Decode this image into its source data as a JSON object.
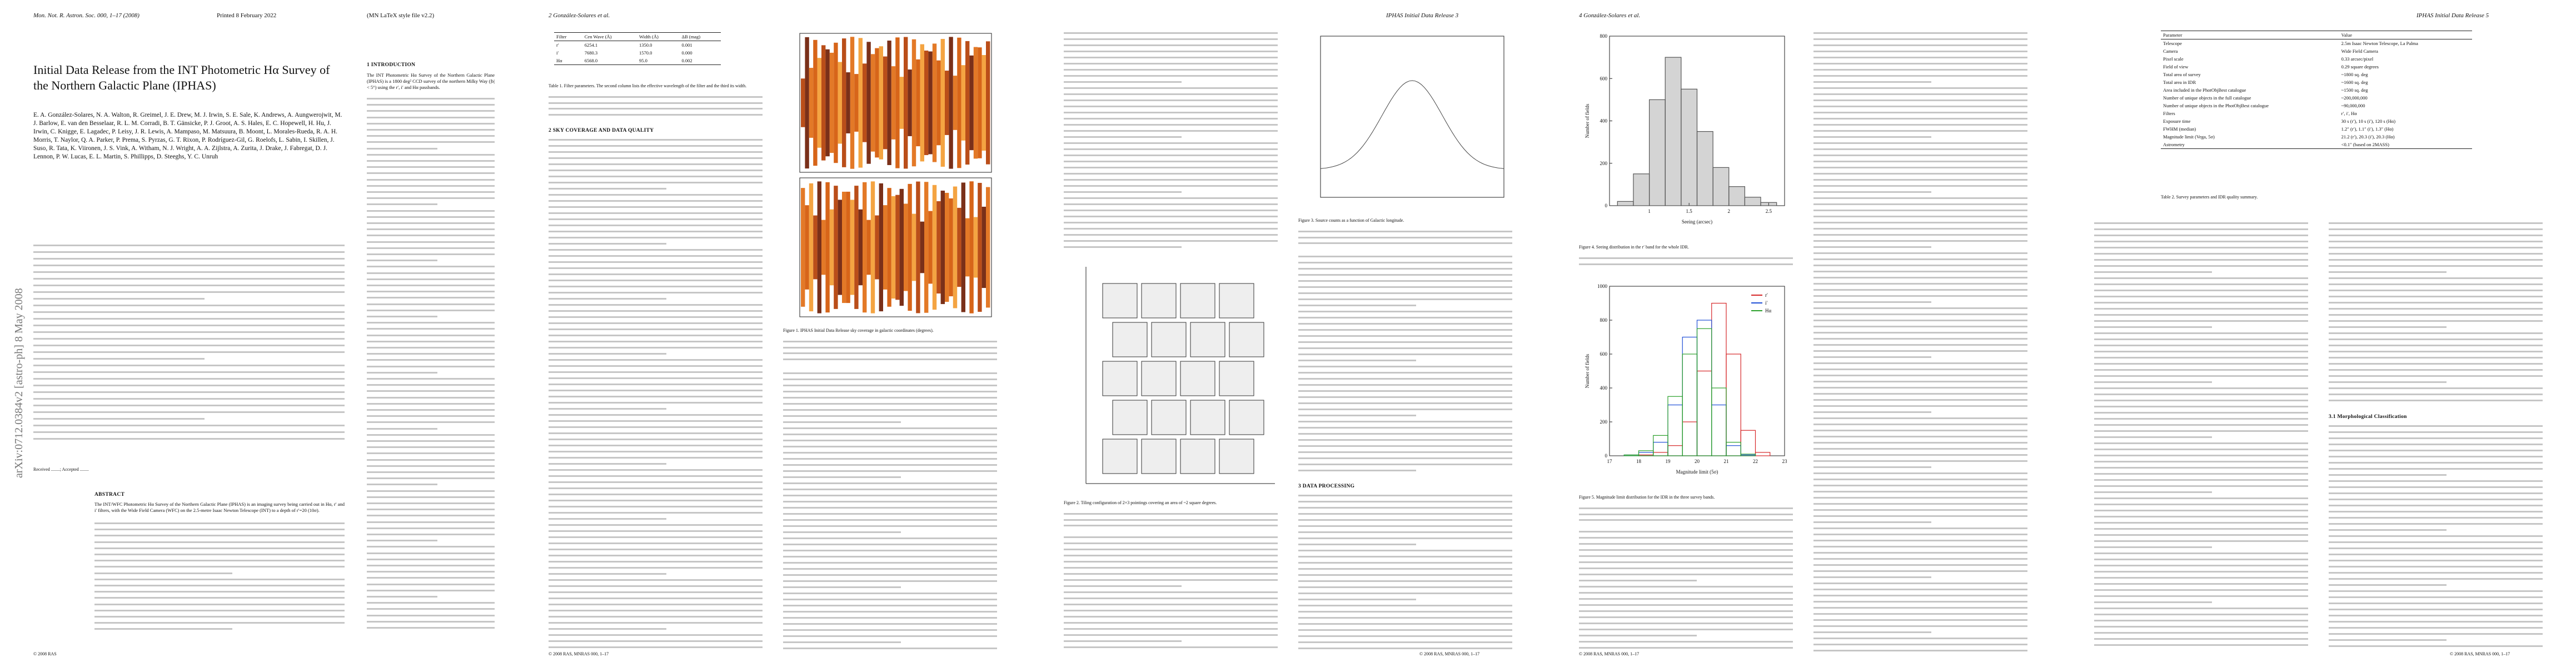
{
  "page1": {
    "header_left": "Mon. Not. R. Astron. Soc. 000, 1–17 (2008)",
    "header_mid": "Printed 8 February 2022",
    "header_right": "(MN LaTeX style file v2.2)",
    "title": "Initial Data Release from the INT Photometric Hα Survey of the Northern Galactic Plane (IPHAS)",
    "authors": "E. A. González-Solares, N. A. Walton, R. Greimel, J. E. Drew, M. J. Irwin, S. E. Sale, K. Andrews, A. Aungwerojwit, M. J. Barlow, E. van den Besselaar, R. L. M. Corradi, B. T. Gänsicke, P. J. Groot, A. S. Hales, E. C. Hopewell, H. Hu, J. Irwin, C. Knigge, E. Lagadec, P. Leisy, J. R. Lewis, A. Mampaso, M. Matsuura, B. Moont, L. Morales-Rueda, R. A. H. Morris, T. Naylor, Q. A. Parker, P. Prema, S. Pyrzas, G. T. Rixon, P. Rodríguez-Gil, G. Roelofs, L. Sabin, I. Skillen, J. Suso, R. Tata, K. Viironen, J. S. Vink, A. Witham, N. J. Wright, A. A. Zijlstra, A. Zurita, J. Drake, J. Fabregat, D. J. Lennon, P. W. Lucas, E. L. Martin, S. Phillipps, D. Steeghs, Y. C. Unruh",
    "arxiv_id": "arXiv:0712.0384v2  [astro-ph]  8 May 2008",
    "received": "Received ........; Accepted ........",
    "abstract_heading": "ABSTRACT",
    "abstract": "The INT/WFC Photometric Hα Survey of the Northern Galactic Plane (IPHAS) is an imaging survey being carried out in Hα, r′ and i′ filters, with the Wide Field Camera (WFC) on the 2.5-metre Isaac Newton Telescope (INT) to a depth of r′=20 (10σ).",
    "section_heading": "1 INTRODUCTION",
    "intro": "The INT Photometric Hα Survey of the Northern Galactic Plane (IPHAS) is a 1800 deg² CCD survey of the northern Milky Way (|b| < 5°) using the r′, i′ and Hα passbands.",
    "footer": "© 2008 RAS"
  },
  "page2": {
    "header_left": "2    González-Solares et al.",
    "table1": {
      "columns": [
        "Filter",
        "Cen Wave (Å)",
        "Width (Å)",
        "ΔB (mag)"
      ],
      "rows": [
        [
          "r′",
          "6254.1",
          "1350.0",
          "0.001"
        ],
        [
          "i′",
          "7680.3",
          "1570.0",
          "0.000"
        ],
        [
          "Hα",
          "6568.0",
          "95.0",
          "0.002"
        ]
      ]
    },
    "table1_caption": "Table 1. Filter parameters. The second column lists the effective wavelength of the filter and the third its width.",
    "section_heading": "2 SKY COVERAGE AND DATA QUALITY",
    "fig1_caption": "Figure 1. IPHAS Initial Data Release sky coverage in galactic coordinates (degrees).",
    "footer": "© 2008 RAS, MNRAS 000, 1–17"
  },
  "page3": {
    "header_right": "IPHAS Initial Data Release    3",
    "fig2_caption": "Figure 2. Tiling configuration of 2×3 pointings covering an area of ~2 square degrees.",
    "fig3_caption": "Figure 3. Source counts as a function of Galactic longitude.",
    "section_heading": "3 DATA PROCESSING",
    "footer": "© 2008 RAS, MNRAS 000, 1–17"
  },
  "page4": {
    "header_left": "4    González-Solares et al.",
    "figure4": {
      "xlabel": "Seeing (arcsec)",
      "ylabel": "Number of fields",
      "bins": [
        0.6,
        0.8,
        1.0,
        1.2,
        1.4,
        1.6,
        1.8,
        2.0,
        2.2,
        2.4,
        2.6
      ],
      "values": [
        20,
        150,
        500,
        700,
        550,
        350,
        180,
        90,
        40,
        15
      ],
      "xlim": [
        0.5,
        2.7
      ],
      "xticks": [
        1,
        1.5,
        2,
        2.5
      ],
      "ylim": [
        0,
        800
      ],
      "yticks": [
        0,
        200,
        400,
        600,
        800
      ],
      "color": "#555555"
    },
    "fig4_caption": "Figure 4. Seeing distribution in the r′ band for the whole IDR.",
    "figure5": {
      "xlabel": "Magnitude limit (5σ)",
      "ylabel": "Number of fields",
      "bins": [
        17,
        17.5,
        18,
        18.5,
        19,
        19.5,
        20,
        20.5,
        21,
        21.5,
        22,
        22.5,
        23
      ],
      "series": [
        {
          "name": "r′",
          "color": "#d62728",
          "values": [
            0,
            0,
            5,
            20,
            60,
            200,
            500,
            900,
            600,
            150,
            20,
            0
          ]
        },
        {
          "name": "i′",
          "color": "#1f4fd6",
          "values": [
            0,
            5,
            20,
            80,
            300,
            700,
            800,
            300,
            60,
            5,
            0,
            0
          ]
        },
        {
          "name": "Hα",
          "color": "#2ca02c",
          "values": [
            0,
            5,
            30,
            120,
            350,
            600,
            750,
            400,
            80,
            10,
            0,
            0
          ]
        }
      ],
      "xlim": [
        17,
        23
      ],
      "xticks": [
        17,
        18,
        19,
        20,
        21,
        22,
        23
      ],
      "ylim": [
        0,
        1000
      ],
      "yticks": [
        0,
        200,
        400,
        600,
        800,
        1000
      ]
    },
    "fig5_caption": "Figure 5. Magnitude limit distribution for the IDR in the three survey bands.",
    "footer": "© 2008 RAS, MNRAS 000, 1–17"
  },
  "page5": {
    "header_right": "IPHAS Initial Data Release    5",
    "table2": {
      "columns": [
        "Parameter",
        "Value"
      ],
      "rows": [
        [
          "Telescope",
          "2.5m Isaac Newton Telescope, La Palma"
        ],
        [
          "Camera",
          "Wide Field Camera"
        ],
        [
          "Pixel scale",
          "0.33 arcsec/pixel"
        ],
        [
          "Field of view",
          "0.29 square degrees"
        ],
        [
          "Total area of survey",
          "~1800 sq. deg"
        ],
        [
          "Total area in IDR",
          "~1600 sq. deg"
        ],
        [
          "Area included in the PhotObjBest catalogue",
          "~1500 sq. deg"
        ],
        [
          "Number of unique objects in the full catalogue",
          "~200,000,000"
        ],
        [
          "Number of unique objects in the PhotObjBest catalogue",
          "~90,000,000"
        ],
        [
          "Filters",
          "r′, i′, Hα"
        ],
        [
          "Exposure time",
          "30 s (r′), 10 s (i′), 120 s (Hα)"
        ],
        [
          "FWHM (median)",
          "1.2″ (r′), 1.1″ (i′), 1.3″ (Hα)"
        ],
        [
          "Magnitude limit (Vega, 5σ)",
          "21.2 (r′), 20.3 (i′), 20.3 (Hα)"
        ],
        [
          "Astrometry",
          "<0.1″ (based on 2MASS)"
        ]
      ]
    },
    "table2_caption": "Table 2. Survey parameters and IDR quality summary.",
    "section_heading": "3.1 Morphological Classification",
    "footer": "© 2008 RAS, MNRAS 000, 1–17"
  }
}
